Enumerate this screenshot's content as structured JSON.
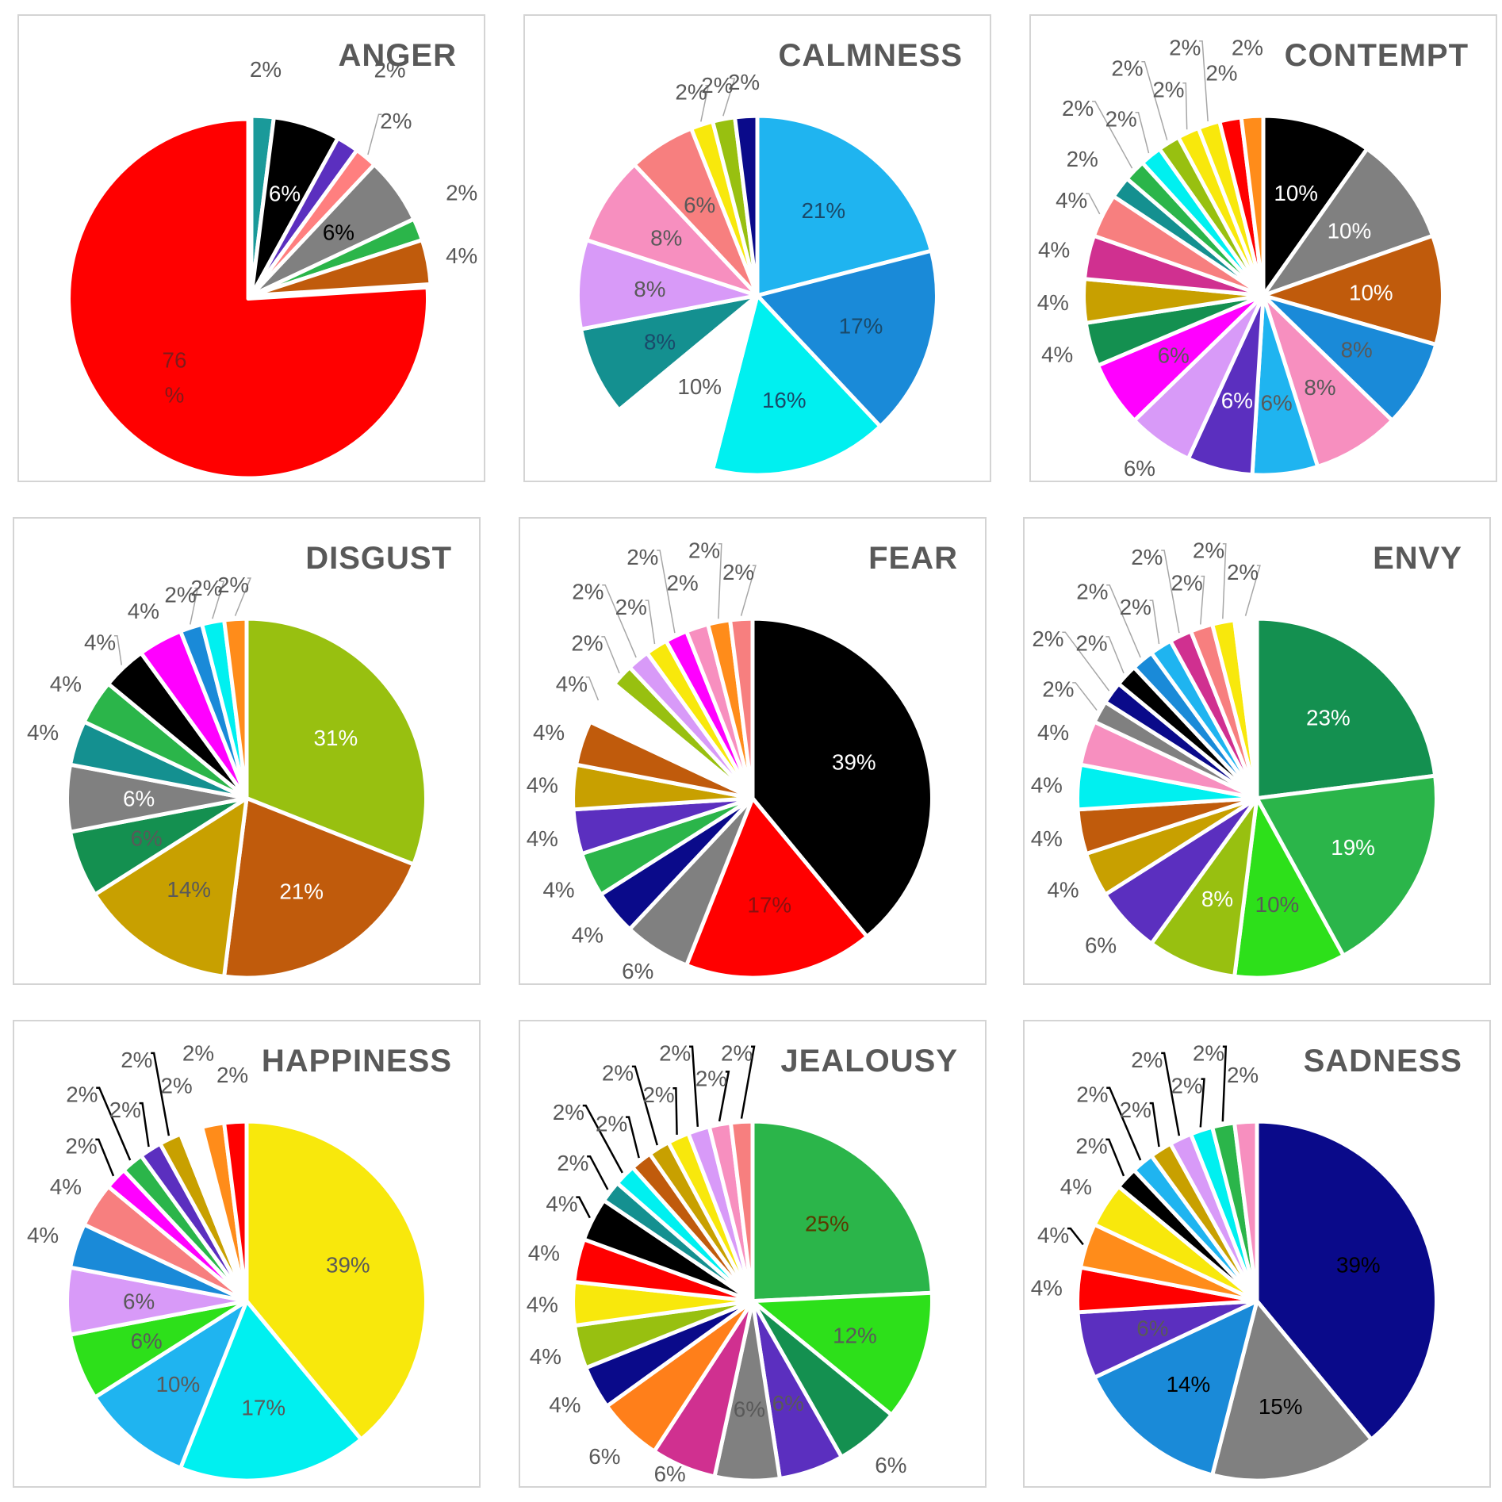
{
  "chart_data": [
    {
      "type": "pie",
      "title": "ANGER",
      "values": [
        2,
        6,
        2,
        2,
        6,
        2,
        4,
        76
      ],
      "labels": [
        "2%",
        "6%",
        "2%",
        "2%",
        "6%",
        "2%",
        "4%",
        "76\n%"
      ],
      "colors": [
        "#1a9a9a",
        "#000000",
        "#5b2fbf",
        "#ff7f7f",
        "#808080",
        "#2bb54a",
        "#c05b0c",
        "#ff0000"
      ],
      "label_colors": [
        "#595959",
        "#ffffff",
        "#595959",
        "#595959",
        "#000000",
        "#595959",
        "#595959",
        "#7f1b1b"
      ],
      "inside": [
        false,
        true,
        false,
        false,
        true,
        false,
        false,
        true
      ],
      "leaders": [
        false,
        false,
        false,
        true,
        false,
        false,
        false,
        false
      ],
      "explode_first": true
    },
    {
      "type": "pie",
      "title": "CALMNESS",
      "values": [
        21,
        17,
        16,
        10,
        8,
        8,
        8,
        6,
        2,
        2,
        2
      ],
      "labels": [
        "21%",
        "17%",
        "16%",
        "10%",
        "8%",
        "8%",
        "8%",
        "6%",
        "2%",
        "2%",
        "2%"
      ],
      "colors": [
        "#1fb4f0",
        "#1a8ad8",
        "#00f0f0",
        "#ffffff",
        "#149090",
        "#d89af8",
        "#f78fbf",
        "#f77f7f",
        "#f8e80c",
        "#98c010",
        "#0a0a8a"
      ],
      "label_colors": [
        "#1a4a6a",
        "#1a4a6a",
        "#1a4a6a",
        "#595959",
        "#1a4a6a",
        "#595959",
        "#595959",
        "#595959",
        "#595959",
        "#595959",
        "#595959"
      ],
      "inside": [
        true,
        true,
        true,
        true,
        true,
        true,
        true,
        true,
        false,
        false,
        false
      ],
      "leaders": [
        false,
        false,
        false,
        false,
        false,
        false,
        false,
        false,
        true,
        true,
        false
      ]
    },
    {
      "type": "pie",
      "title": "CONTEMPT",
      "values": [
        10,
        10,
        10,
        8,
        8,
        6,
        6,
        6,
        6,
        4,
        4,
        4,
        4,
        2,
        2,
        2,
        2,
        2,
        2,
        2,
        2
      ],
      "labels": [
        "10%",
        "10%",
        "10%",
        "8%",
        "8%",
        "6%",
        "6%",
        "6%",
        "6%",
        "4%",
        "4%",
        "4%",
        "4%",
        "2%",
        "2%",
        "2%",
        "2%",
        "2%",
        "2%",
        "2%",
        "2%"
      ],
      "colors": [
        "#000000",
        "#808080",
        "#c05b0c",
        "#1a8ad8",
        "#f78fbf",
        "#1fb4f0",
        "#5b2fbf",
        "#d89af8",
        "#ff00ff",
        "#149050",
        "#c8a000",
        "#d03090",
        "#f77f7f",
        "#149090",
        "#2bb54a",
        "#00f0f0",
        "#98c010",
        "#f8e80c",
        "#f8e80c",
        "#ff0000",
        "#ff8c1a"
      ],
      "label_colors": [
        "#ffffff",
        "#ffffff",
        "#ffffff",
        "#595959",
        "#595959",
        "#595959",
        "#ffffff",
        "#595959",
        "#595959",
        "#595959",
        "#595959",
        "#595959",
        "#595959",
        "#595959",
        "#595959",
        "#595959",
        "#595959",
        "#595959",
        "#595959",
        "#595959",
        "#595959"
      ],
      "inside": [
        true,
        true,
        true,
        true,
        true,
        true,
        true,
        false,
        true,
        false,
        false,
        false,
        false,
        false,
        false,
        false,
        false,
        false,
        false,
        false,
        false
      ],
      "leaders": [
        false,
        false,
        false,
        false,
        false,
        false,
        false,
        false,
        false,
        false,
        false,
        false,
        true,
        false,
        true,
        true,
        true,
        true,
        true,
        false,
        false
      ]
    },
    {
      "type": "pie",
      "title": "DISGUST",
      "values": [
        31,
        21,
        14,
        6,
        6,
        4,
        4,
        4,
        4,
        2,
        2,
        2
      ],
      "labels": [
        "31%",
        "21%",
        "14%",
        "6%",
        "6%",
        "4%",
        "4%",
        "4%",
        "4%",
        "2%",
        "2%",
        "2%"
      ],
      "colors": [
        "#98c010",
        "#c05b0c",
        "#c8a000",
        "#149050",
        "#808080",
        "#149090",
        "#2bb54a",
        "#000000",
        "#ff00ff",
        "#1a8ad8",
        "#00f0f0",
        "#ff8c1a"
      ],
      "label_colors": [
        "#ffffff",
        "#ffffff",
        "#595959",
        "#595959",
        "#ffffff",
        "#595959",
        "#595959",
        "#595959",
        "#595959",
        "#595959",
        "#595959",
        "#595959"
      ],
      "inside": [
        true,
        true,
        true,
        true,
        true,
        false,
        false,
        false,
        false,
        false,
        false,
        false
      ],
      "leaders": [
        false,
        false,
        false,
        false,
        false,
        false,
        false,
        true,
        false,
        true,
        true,
        true
      ]
    },
    {
      "type": "pie",
      "title": "FEAR",
      "values": [
        39,
        17,
        6,
        4,
        4,
        4,
        4,
        4,
        4,
        2,
        2,
        2,
        2,
        2,
        2,
        2
      ],
      "labels": [
        "39%",
        "17%",
        "6%",
        "4%",
        "4%",
        "4%",
        "4%",
        "4%",
        "4%",
        "2%",
        "2%",
        "2%",
        "2%",
        "2%",
        "2%",
        "2%"
      ],
      "colors": [
        "#000000",
        "#ff0000",
        "#808080",
        "#0a0a8a",
        "#2bb54a",
        "#5b2fbf",
        "#c8a000",
        "#c05b0c",
        "#ffffff",
        "#98c010",
        "#d89af8",
        "#f8e80c",
        "#ff00ff",
        "#f78fbf",
        "#ff8c1a",
        "#f77f7f"
      ],
      "label_colors": [
        "#ffffff",
        "#8a1010",
        "#595959",
        "#595959",
        "#595959",
        "#595959",
        "#595959",
        "#595959",
        "#595959",
        "#595959",
        "#595959",
        "#595959",
        "#595959",
        "#595959",
        "#595959",
        "#595959"
      ],
      "inside": [
        true,
        true,
        false,
        false,
        false,
        false,
        false,
        false,
        false,
        false,
        false,
        false,
        false,
        false,
        false,
        false
      ],
      "leaders": [
        false,
        false,
        false,
        false,
        false,
        false,
        false,
        false,
        true,
        true,
        true,
        true,
        true,
        false,
        true,
        true
      ]
    },
    {
      "type": "pie",
      "title": "ENVY",
      "values": [
        23,
        19,
        10,
        8,
        6,
        4,
        4,
        4,
        4,
        2,
        2,
        2,
        2,
        2,
        2,
        2,
        2,
        2
      ],
      "labels": [
        "23%",
        "19%",
        "10%",
        "8%",
        "6%",
        "4%",
        "4%",
        "4%",
        "4%",
        "2%",
        "2%",
        "2%",
        "2%",
        "2%",
        "2%",
        "2%",
        "2%",
        "2%"
      ],
      "colors": [
        "#149050",
        "#2bb54a",
        "#2de01a",
        "#98c010",
        "#5b2fbf",
        "#c8a000",
        "#c05b0c",
        "#00f0f0",
        "#f78fbf",
        "#808080",
        "#0a0a8a",
        "#000000",
        "#1a8ad8",
        "#1fb4f0",
        "#d03090",
        "#f77f7f",
        "#f8e80c",
        "#ffffff"
      ],
      "label_colors": [
        "#ffffff",
        "#ffffff",
        "#595959",
        "#ffffff",
        "#595959",
        "#595959",
        "#595959",
        "#595959",
        "#595959",
        "#595959",
        "#595959",
        "#595959",
        "#595959",
        "#595959",
        "#595959",
        "#595959",
        "#595959",
        "#595959"
      ],
      "inside": [
        true,
        true,
        true,
        true,
        false,
        false,
        false,
        false,
        false,
        false,
        false,
        false,
        false,
        false,
        false,
        false,
        false,
        false
      ],
      "leaders": [
        false,
        false,
        false,
        false,
        false,
        false,
        false,
        false,
        false,
        true,
        true,
        true,
        true,
        true,
        true,
        true,
        true,
        true
      ]
    },
    {
      "type": "pie",
      "title": "HAPPINESS",
      "values": [
        39,
        17,
        10,
        6,
        6,
        4,
        4,
        2,
        2,
        2,
        2,
        2,
        2,
        2
      ],
      "labels": [
        "39%",
        "17%",
        "10%",
        "6%",
        "6%",
        "4%",
        "4%",
        "2%",
        "2%",
        "2%",
        "2%",
        "2%",
        "2%",
        "2%"
      ],
      "colors": [
        "#f8e80c",
        "#00f0f0",
        "#1fb4f0",
        "#2de01a",
        "#d89af8",
        "#1a8ad8",
        "#f77f7f",
        "#ff00ff",
        "#2bb54a",
        "#5b2fbf",
        "#c8a000",
        "#ffffff",
        "#ff8c1a",
        "#ff0000"
      ],
      "label_colors": [
        "#595959",
        "#595959",
        "#595959",
        "#595959",
        "#595959",
        "#595959",
        "#595959",
        "#595959",
        "#595959",
        "#595959",
        "#595959",
        "#595959",
        "#595959",
        "#595959"
      ],
      "inside": [
        true,
        true,
        true,
        true,
        true,
        false,
        false,
        false,
        false,
        false,
        false,
        false,
        false,
        false
      ],
      "leaders": [
        false,
        false,
        false,
        false,
        false,
        false,
        false,
        true,
        true,
        true,
        true,
        false,
        false,
        false
      ]
    },
    {
      "type": "pie",
      "title": "JEALOUSY",
      "values": [
        25,
        12,
        6,
        6,
        6,
        6,
        6,
        4,
        4,
        4,
        4,
        4,
        2,
        2,
        2,
        2,
        2,
        2,
        2,
        2
      ],
      "labels": [
        "25%",
        "12%",
        "6%",
        "6%",
        "6%",
        "6%",
        "6%",
        "4%",
        "4%",
        "4%",
        "4%",
        "4%",
        "2%",
        "2%",
        "2%",
        "2%",
        "2%",
        "2%",
        "2%",
        "2%"
      ],
      "colors": [
        "#2bb54a",
        "#2de01a",
        "#149050",
        "#5b2fbf",
        "#808080",
        "#d03090",
        "#ff7f1a",
        "#0a0a8a",
        "#98c010",
        "#f8e80c",
        "#ff0000",
        "#000000",
        "#149090",
        "#00f0f0",
        "#c05b0c",
        "#c8a000",
        "#f8e80c",
        "#d89af8",
        "#f78fbf",
        "#f77f7f"
      ],
      "label_colors": [
        "#5a3a00",
        "#595959",
        "#595959",
        "#595959",
        "#595959",
        "#595959",
        "#595959",
        "#595959",
        "#595959",
        "#595959",
        "#595959",
        "#595959",
        "#595959",
        "#595959",
        "#595959",
        "#595959",
        "#595959",
        "#595959",
        "#595959",
        "#595959"
      ],
      "inside": [
        true,
        true,
        false,
        true,
        true,
        false,
        false,
        false,
        false,
        false,
        false,
        false,
        false,
        false,
        false,
        false,
        false,
        false,
        false,
        false
      ],
      "leaders": [
        false,
        false,
        false,
        false,
        false,
        false,
        false,
        false,
        false,
        false,
        false,
        true,
        true,
        true,
        true,
        true,
        true,
        true,
        true,
        true
      ]
    },
    {
      "type": "pie",
      "title": "SADNESS",
      "values": [
        39,
        15,
        14,
        6,
        4,
        4,
        4,
        2,
        2,
        2,
        2,
        2,
        2,
        2
      ],
      "labels": [
        "39%",
        "15%",
        "14%",
        "6%",
        "4%",
        "4%",
        "4%",
        "2%",
        "2%",
        "2%",
        "2%",
        "2%",
        "2%",
        "2%"
      ],
      "colors": [
        "#0a0a8a",
        "#808080",
        "#1a8ad8",
        "#5b2fbf",
        "#ff0000",
        "#ff8c1a",
        "#f8e80c",
        "#000000",
        "#1fb4f0",
        "#c8a000",
        "#d89af8",
        "#00f0f0",
        "#2bb54a",
        "#f78fbf"
      ],
      "label_colors": [
        "#000000",
        "#000000",
        "#000000",
        "#595959",
        "#595959",
        "#595959",
        "#595959",
        "#595959",
        "#595959",
        "#595959",
        "#595959",
        "#595959",
        "#595959",
        "#595959"
      ],
      "inside": [
        true,
        true,
        true,
        true,
        false,
        false,
        false,
        false,
        false,
        false,
        false,
        false,
        false,
        false
      ],
      "leaders": [
        false,
        false,
        false,
        false,
        false,
        true,
        false,
        true,
        true,
        true,
        true,
        true,
        true,
        false
      ]
    }
  ]
}
